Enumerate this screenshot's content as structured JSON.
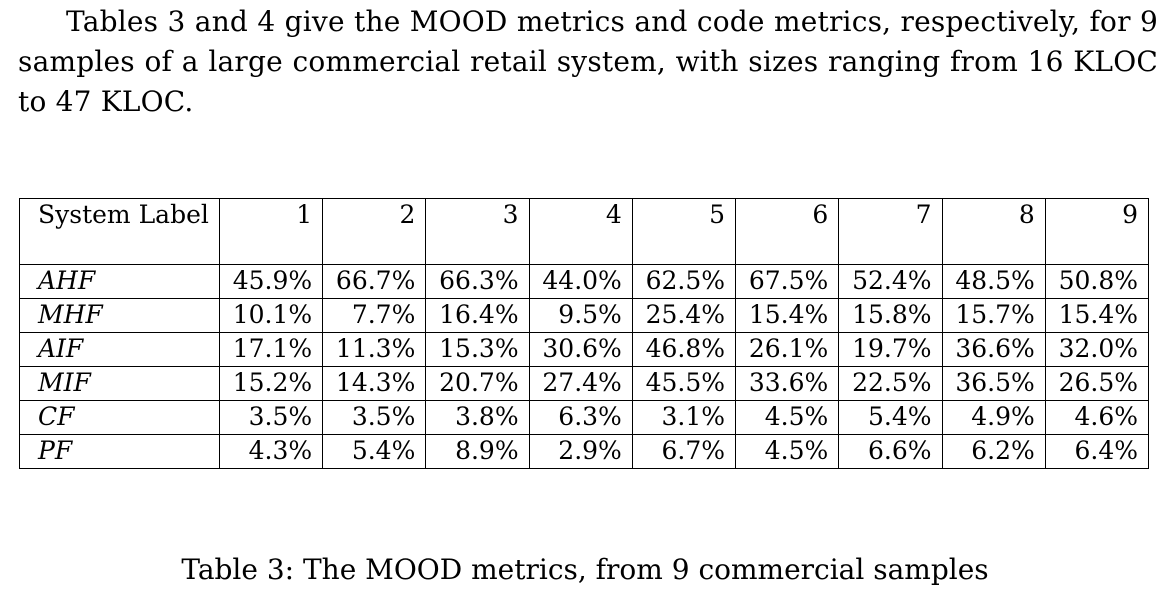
{
  "intro_paragraph": "Tables 3 and 4 give the MOOD metrics and code metrics, respectively, for 9 samples of a large commercial retail system, with sizes ranging from 16 KLOC to 47 KLOC.",
  "table": {
    "corner_label": "System Label",
    "columns": [
      "1",
      "2",
      "3",
      "4",
      "5",
      "6",
      "7",
      "8",
      "9"
    ],
    "rows": [
      {
        "metric": "AHF",
        "values": [
          "45.9%",
          "66.7%",
          "66.3%",
          "44.0%",
          "62.5%",
          "67.5%",
          "52.4%",
          "48.5%",
          "50.8%"
        ]
      },
      {
        "metric": "MHF",
        "values": [
          "10.1%",
          "7.7%",
          "16.4%",
          "9.5%",
          "25.4%",
          "15.4%",
          "15.8%",
          "15.7%",
          "15.4%"
        ]
      },
      {
        "metric": "AIF",
        "values": [
          "17.1%",
          "11.3%",
          "15.3%",
          "30.6%",
          "46.8%",
          "26.1%",
          "19.7%",
          "36.6%",
          "32.0%"
        ]
      },
      {
        "metric": "MIF",
        "values": [
          "15.2%",
          "14.3%",
          "20.7%",
          "27.4%",
          "45.5%",
          "33.6%",
          "22.5%",
          "36.5%",
          "26.5%"
        ]
      },
      {
        "metric": "CF",
        "values": [
          "3.5%",
          "3.5%",
          "3.8%",
          "6.3%",
          "3.1%",
          "4.5%",
          "5.4%",
          "4.9%",
          "4.6%"
        ]
      },
      {
        "metric": "PF",
        "values": [
          "4.3%",
          "5.4%",
          "8.9%",
          "2.9%",
          "6.7%",
          "4.5%",
          "6.6%",
          "6.2%",
          "6.4%"
        ]
      }
    ]
  },
  "caption": "Table 3: The MOOD metrics, from 9 commercial samples"
}
